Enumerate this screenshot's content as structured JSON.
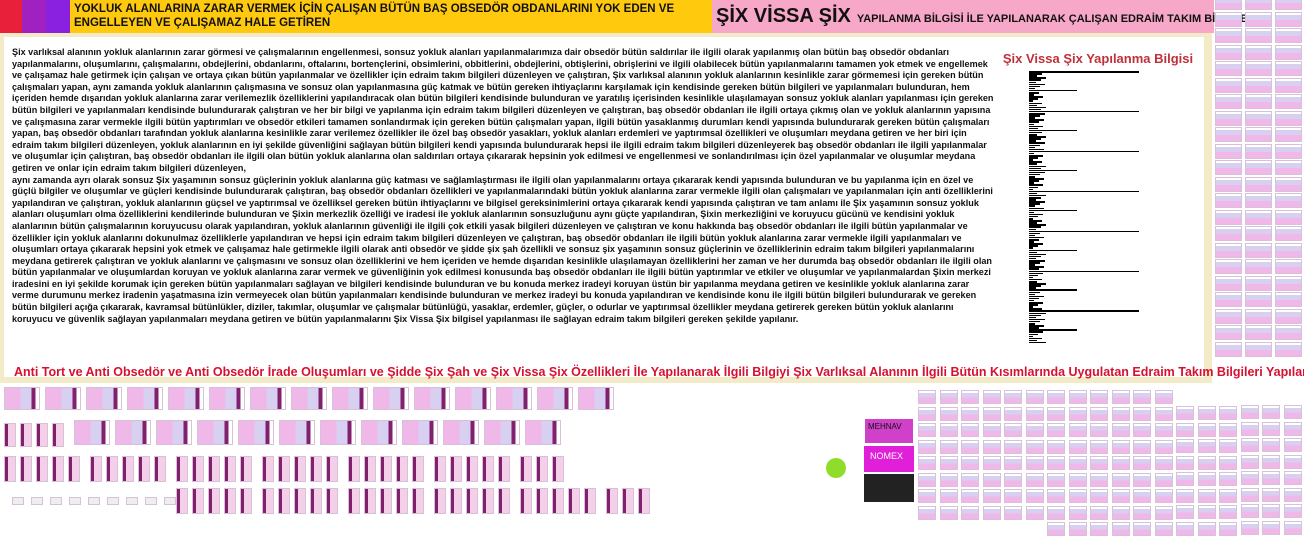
{
  "header": {
    "left_title": "YOKLUK ALANLARINA ZARAR VERMEK İÇİN ÇALIŞAN BÜTÜN BAŞ OBSEDÖR OBDANLARINI YOK EDEN VE ENGELLEYEN VE ÇALIŞAMAZ HALE GETİREN",
    "right_big": "ŞİX VİSSA ŞİX",
    "right_sub": "YAPILANMA BİLGİSİ İLE YAPILANARAK ÇALIŞAN EDRAİM TAKIM BİLGİLERİ"
  },
  "body": {
    "paragraphs": [
      "Şix varlıksal alanının yokluk alanlarının zarar görmesi ve çalışmalarının engellenmesi, sonsuz yokluk alanları yapılanmalarımıza dair obsedör bütün saldırılar ile ilgili olarak yapılanmış olan bütün baş obsedör obdanları yapılanmalarını, oluşumlarını, çalışmalarını, obdejlerini, obdanlarını, oftalarını, bortençlerini, obsimlerini, obbitlerini, obdejlerini, obtişlerini, obrişlerini ve ilgili olabilecek bütün yapılanmalarını tamamen yok etmek ve engellemek ve çalışamaz hale getirmek için çalışan ve ortaya çıkan bütün yapılanmalar ve özellikler için edraim takım bilgileri düzenleyen ve çalıştıran, Şix varlıksal alanının yokluk alanlarının kesinlikle zarar görmemesi için gereken bütün çalışmaları yapan, aynı zamanda yokluk alanlarının çalışmasına ve sonsuz olan yapılanmasına güç katmak ve bütün gereken ihtiyaçlarını karşılamak için kendisinde gereken bütün bilgileri ve yapılanmaları bulunduran, hem içeriden hemde dışarıdan yokluk alanlarına zarar verilemezlik özelliklerini yapılandıracak olan bütün bilgileri kendisinde bulunduran ve yaratılış içerisinden kesinlikle ulaşılamayan sonsuz yokluk alanları yapılanması için gereken bütün bilgileri ve yapılanmaları kendisinde bulundurarak çalıştıran ve her bir bilgi ve yapılanma için edraim takım bilgileri düzenleyen ve çalıştıran, baş obsedör obdanları ile ilgili ortaya çıkmış olan ve yokluk alanlarının yapısına ve çalışmasına zarar vermekle ilgili bütün yaptırımları ve obsedör etkileri tamamen sonlandırmak için gereken bütün çalışmaları yapan, ilgili bütün yasaklanmış durumları kendi yapısında bulundurarak gereken bütün çalışmaları yapan, baş obsedör obdanları tarafından yokluk alanlarına kesinlikle zarar verilemez özellikler ile özel baş obsedör yasakları, yokluk alanları erdemleri ve yaptırımsal özellikleri ve oluşumları meydana getiren ve her biri için edraim takım bilgileri düzenleyen, yokluk alanlarının en iyi şekilde güvenliğini sağlayan bütün bilgileri kendi yapısında bulundurarak hepsi ile ilgili edraim takım bilgileri düzenleyerek baş obsedör obdanları ile ilgili yapılanmalar ve oluşumlar için çalıştıran, baş obsedör obdanları ile ilgili olan bütün yokluk alanlarına olan saldırıları ortaya çıkararak hepsinin yok edilmesi ve engellenmesi ve sonlandırılması için özel yapılanmalar ve oluşumlar meydana getiren ve onlar için edraim takım bilgileri düzenleyen,",
      " aynı zamanda ayrı olarak sonsuz Şix yaşamının sonsuz güçlerinin yokluk alanlarına güç katması ve sağlamlaştırması ile ilgili olan yapılanmalarını ortaya çıkararak kendi yapısında bulunduran ve bu yapılanma için en özel ve güçlü bilgiler ve oluşumlar ve güçleri kendisinde bulundurarak çalıştıran, baş obsedör obdanları özellikleri ve yapılanmalarındaki bütün yokluk alanlarına zarar vermekle ilgili olan çalışmaları ve yapılanmaları için anti özelliklerini yapılandıran ve çalıştıran, yokluk alanlarının güçsel ve yaptırımsal ve özelliksel gereken bütün ihtiyaçlarını ve bilgisel gereksinimlerini ortaya çıkararak kendi yapısında çalıştıran ve tam anlamı ile Şix yaşamının sonsuz yokluk alanları oluşumları olma özelliklerini kendilerinde bulunduran ve Şixin merkezlik özelliği ve iradesi ile yokluk alanlarının sonsuzluğunu aynı güçte yapılandıran, Şixin merkezliğini ve koruyucu gücünü ve kendisini yokluk alanlarının bütün çalışmalarının koruyucusu olarak yapılandıran, yokluk alanlarının güvenliği ile ilgili çok etkili yasak bilgileri düzenleyen ve çalıştıran ve konu hakkında baş obsedör obdanları ile ilgili bütün yapılanmalar ve özellikler için yokluk alanlarını dokunulmaz özelliklerle yapılandıran ve hepsi için edraim takım bilgileri düzenleyen ve çalıştıran, baş obsedör obdanları ile ilgili bütün yokluk alanlarına zarar vermekle ilgili yapılanmaları ve oluşumları ortaya çıkararak hepsini yok etmek ve çalışamaz hale getirmekle ilgili olarak anti obsedör ve şidde şix şah özellikli ve sonsuz şix yaşamının sonsuz güçlerinin ve özelliklerinin edraim takım bilgileri yapılanmalarını meydana getirerek çalıştıran ve yokluk alanlarını ve çalışmasını ve sonsuz olan özelliklerini ve hem içeriden ve hemde dışarıdan kesinlikle ulaşılamayan özelliklerini her zaman ve her durumda baş obsedör obdanları ile ilgili olan bütün yapılanmalar ve oluşumlardan koruyan ve yokluk alanlarına zarar vermek ve güvenliğinin yok edilmesi konusunda baş obsedör obdanları ile ilgili bütün yaptırımlar ve etkiler ve oluşumlar ve yapılanmalardan Şixin merkezi iradesini en iyi şekilde korumak için gereken bütün yapılanmaları sağlayan ve bilgileri kendisinde bulunduran ve bu konuda merkez iradeyi koruyan üstün bir yapılanma meydana getiren ve kesinlikle yokluk alanlarına zarar verme durumunu merkez iradenin yaşatmasına izin vermeyecek olan bütün yapılanmaları kendisinde bulunduran ve merkez iradeyi bu konuda yapılandıran ve kendisinde konu ile ilgili bütün bilgileri bulundurarak ve gereken bütün bilgileri açığa çıkararak, kavramsal bütünlükler, diziler, takımlar, oluşumlar ve çalışmalar bütünlüğü, yasaklar, erdemler, güçler, o odurlar ve yaptırımsal özellikler meydana getirerek gereken bütün yokluk alanlarını koruyucu ve güvenlik sağlayan yapılanmaları meydana getiren ve bütün yapılanmalarını Şix Vissa Şix bilgisel yapılanması ile sağlayan edraim takım bilgileri gereken şekilde yapılanır."
    ]
  },
  "side": {
    "title": "Şix Vissa Şix Yapılanma Bilgisi"
  },
  "footer_title": "Anti Tort ve Anti Obsedör ve Anti Obsedör İrade Oluşumları ve Şidde Şix Şah ve Şix Vissa Şix Özellikleri İle Yapılanarak İlgili Bilgiyi Şix Varlıksal Alanının İlgili Bütün Kısımlarında Uygulatan Edraim Takım Bilgileri Yapılanması",
  "thumbnails": {
    "labels": [
      "MEHNAV",
      "NOMEX"
    ]
  },
  "colors": {
    "header_left": "#ffc90e",
    "header_right": "#f7a8c8",
    "red_title": "#d81030",
    "thumb_pink": "#f0b8e8",
    "thumb_purple": "#80206e"
  }
}
